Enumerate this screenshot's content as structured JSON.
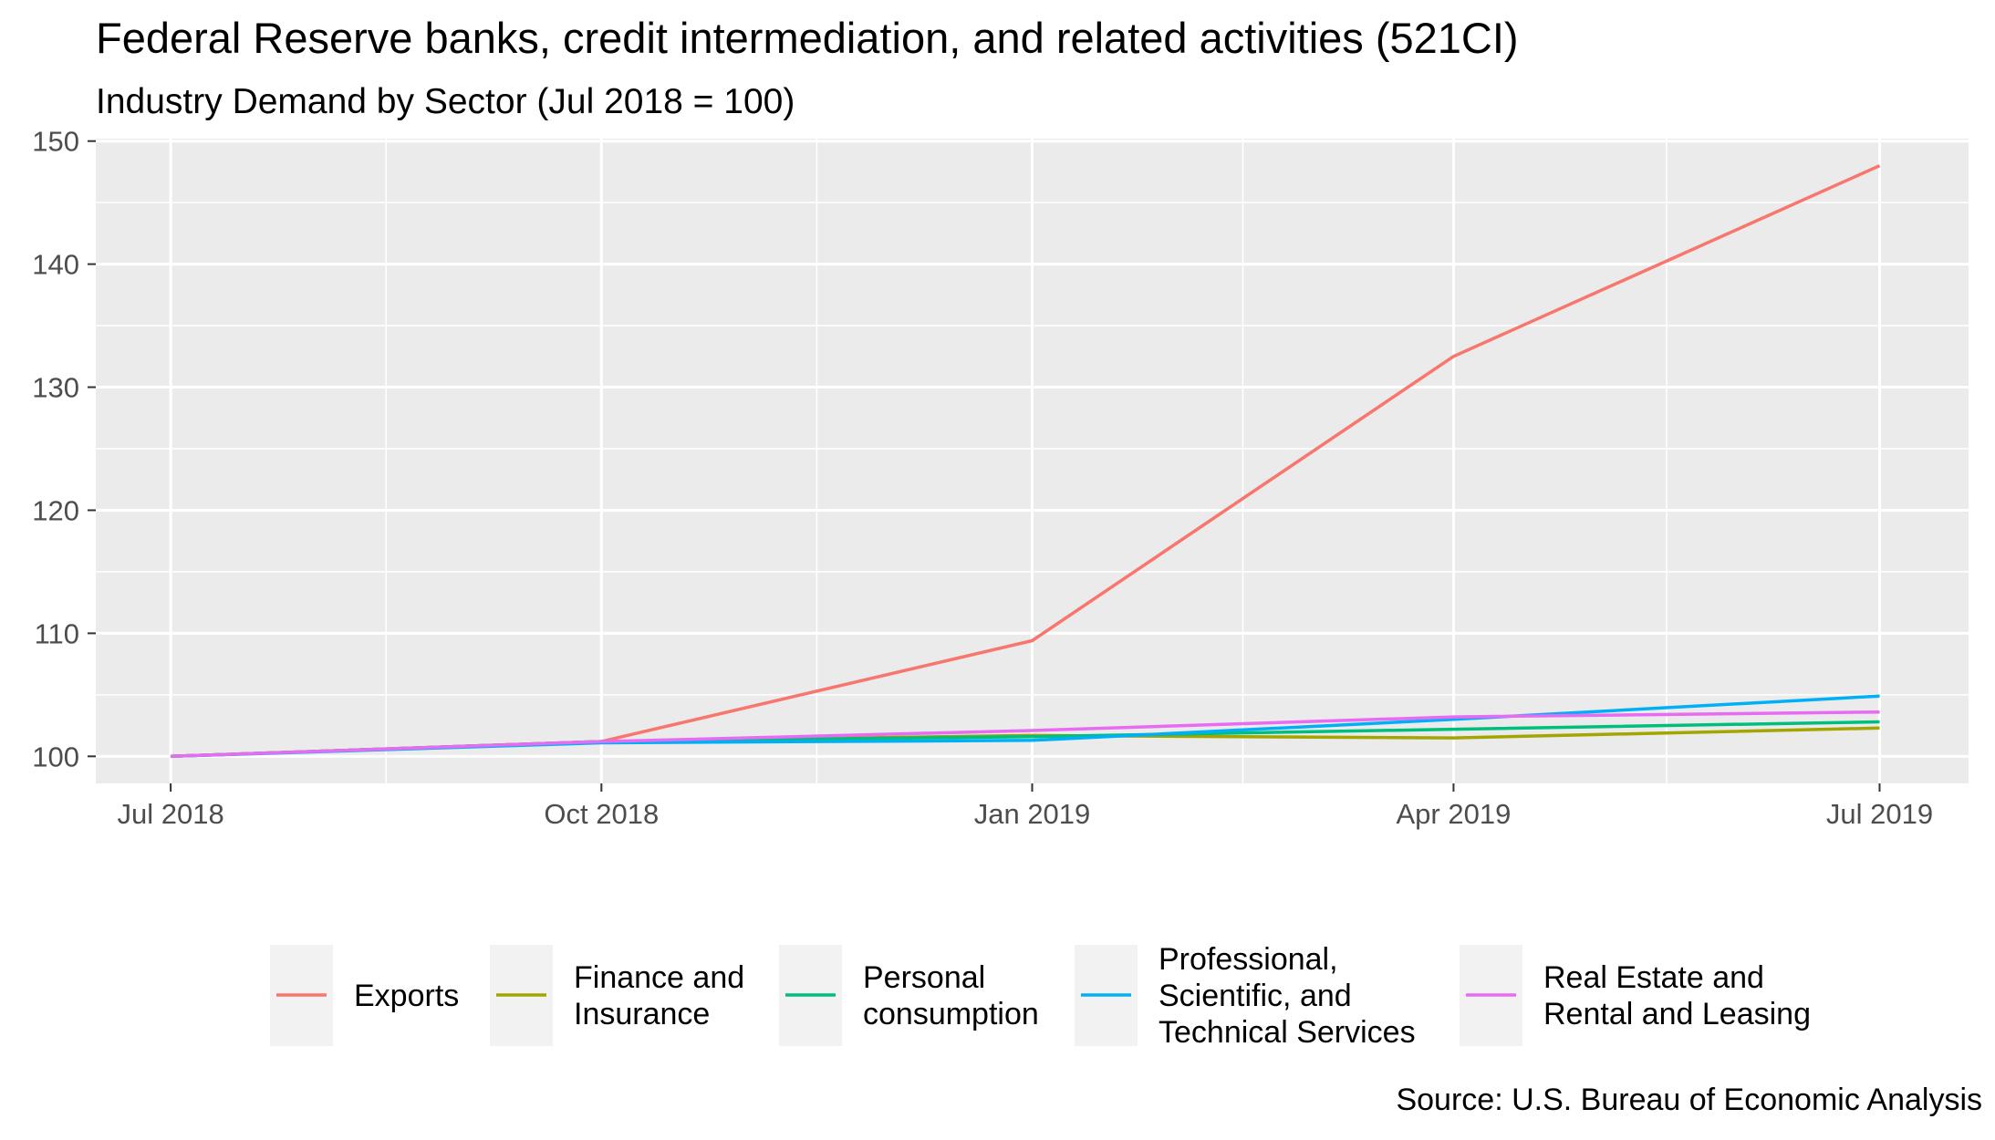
{
  "chart_data": {
    "type": "line",
    "title": "Federal Reserve banks, credit intermediation, and related activities (521CI)",
    "subtitle": "Industry Demand by Sector (Jul 2018 = 100)",
    "caption": "Source: U.S. Bureau of Economic Analysis",
    "xlabel": "",
    "ylabel": "",
    "x": [
      "2018-07-01",
      "2018-10-01",
      "2019-01-01",
      "2019-04-01",
      "2019-07-01"
    ],
    "x_tick_labels": [
      "Jul 2018",
      "Oct 2018",
      "Jan 2019",
      "Apr 2019",
      "Jul 2019"
    ],
    "xlim": [
      "2018-06-15",
      "2019-07-20"
    ],
    "y_ticks": [
      100,
      110,
      120,
      130,
      140,
      150
    ],
    "ylim": [
      97.8,
      150.2
    ],
    "grid": true,
    "legend_position": "bottom",
    "series": [
      {
        "name": "Exports",
        "color": "#F8766D",
        "values": [
          100.0,
          101.2,
          109.4,
          132.5,
          148.0
        ]
      },
      {
        "name": "Finance and Insurance",
        "color": "#A3A500",
        "values": [
          100.0,
          101.2,
          101.7,
          101.5,
          102.3
        ]
      },
      {
        "name": "Personal consumption",
        "color": "#00BF7D",
        "values": [
          100.0,
          101.2,
          101.6,
          102.2,
          102.8
        ]
      },
      {
        "name": "Professional, Scientific, and Technical Services",
        "color": "#00B0F6",
        "values": [
          100.0,
          101.1,
          101.3,
          103.0,
          104.9
        ]
      },
      {
        "name": "Real Estate and Rental and Leasing",
        "color": "#E76BF3",
        "values": [
          100.0,
          101.2,
          102.1,
          103.2,
          103.6
        ]
      }
    ],
    "legend": [
      {
        "lines": [
          "Exports"
        ]
      },
      {
        "lines": [
          "Finance and",
          "Insurance"
        ]
      },
      {
        "lines": [
          "Personal",
          "consumption"
        ]
      },
      {
        "lines": [
          "Professional,",
          "Scientific, and",
          "Technical Services"
        ]
      },
      {
        "lines": [
          "Real Estate and",
          "Rental and Leasing"
        ]
      }
    ]
  }
}
